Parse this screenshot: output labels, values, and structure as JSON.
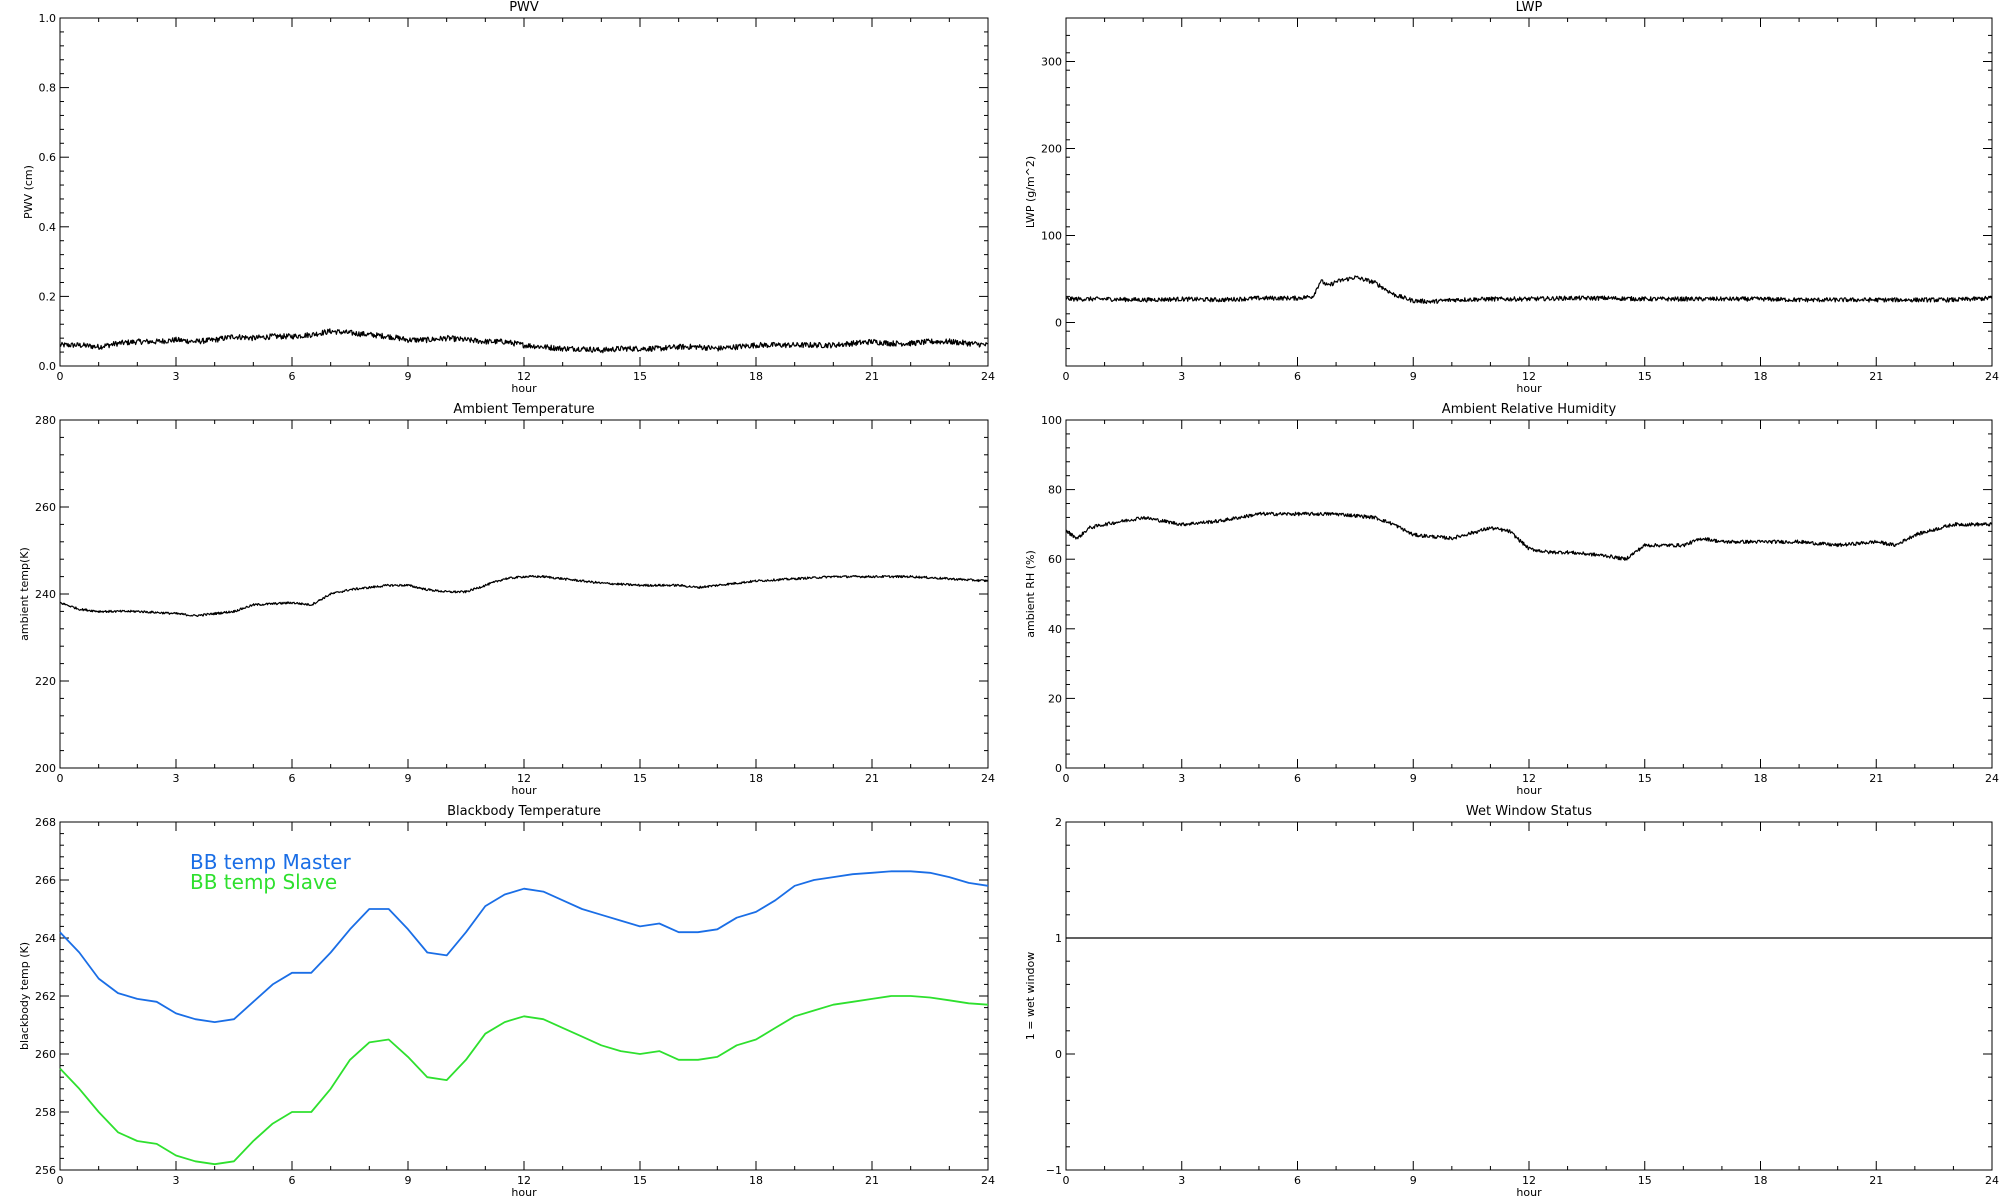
{
  "chart_data": [
    {
      "id": "pwv",
      "type": "line",
      "title": "PWV",
      "xlabel": "hour",
      "ylabel": "PWV (cm)",
      "xlim": [
        0,
        24
      ],
      "ylim": [
        0,
        1.0
      ],
      "xticks": [
        "0",
        "3",
        "6",
        "9",
        "12",
        "15",
        "18",
        "21",
        "24"
      ],
      "yticks": [
        "0.0",
        "0.2",
        "0.4",
        "0.6",
        "0.8",
        "1.0"
      ],
      "ytick_values": [
        0,
        0.2,
        0.4,
        0.6,
        0.8,
        1.0
      ],
      "grid": false,
      "series": [
        {
          "color": "#000000",
          "noise": 0.008,
          "x": [
            0,
            0.5,
            1,
            1.5,
            2,
            2.5,
            3,
            3.5,
            4,
            4.5,
            5,
            5.5,
            6,
            6.5,
            7,
            7.5,
            8,
            8.5,
            9,
            9.5,
            10,
            10.5,
            11,
            11.5,
            12,
            12.5,
            13,
            13.5,
            14,
            14.5,
            15,
            15.5,
            16,
            16.5,
            17,
            17.5,
            18,
            18.5,
            19,
            19.5,
            20,
            20.5,
            21,
            21.5,
            22,
            22.5,
            23,
            23.5,
            24
          ],
          "values": [
            0.06,
            0.06,
            0.055,
            0.065,
            0.07,
            0.07,
            0.075,
            0.07,
            0.075,
            0.085,
            0.08,
            0.085,
            0.085,
            0.09,
            0.1,
            0.095,
            0.09,
            0.085,
            0.075,
            0.075,
            0.08,
            0.075,
            0.07,
            0.07,
            0.06,
            0.055,
            0.05,
            0.05,
            0.045,
            0.05,
            0.05,
            0.05,
            0.055,
            0.055,
            0.05,
            0.055,
            0.06,
            0.06,
            0.06,
            0.06,
            0.06,
            0.065,
            0.07,
            0.065,
            0.065,
            0.07,
            0.07,
            0.065,
            0.06
          ]
        }
      ]
    },
    {
      "id": "lwp",
      "type": "line",
      "title": "LWP",
      "xlabel": "hour",
      "ylabel": "LWP (g/m^2)",
      "xlim": [
        0,
        24
      ],
      "ylim": [
        -50,
        350
      ],
      "xticks": [
        "0",
        "3",
        "6",
        "9",
        "12",
        "15",
        "18",
        "21",
        "24"
      ],
      "yticks": [
        "0",
        "100",
        "200",
        "300"
      ],
      "ytick_values": [
        0,
        100,
        200,
        300
      ],
      "grid": false,
      "series": [
        {
          "color": "#000000",
          "noise": 2.5,
          "x": [
            0,
            1,
            2,
            3,
            4,
            5,
            6,
            6.4,
            6.6,
            6.8,
            7,
            7.5,
            8,
            8.5,
            9,
            9.5,
            10,
            11,
            12,
            13,
            14,
            15,
            16,
            17,
            18,
            19,
            20,
            21,
            22,
            23,
            24
          ],
          "values": [
            27,
            27,
            26,
            27,
            26,
            28,
            28,
            30,
            48,
            42,
            47,
            52,
            46,
            32,
            25,
            24,
            26,
            27,
            27,
            28,
            28,
            27,
            27,
            27,
            27,
            26,
            26,
            26,
            26,
            26,
            28
          ]
        }
      ]
    },
    {
      "id": "ambient-temp",
      "type": "line",
      "title": "Ambient Temperature",
      "xlabel": "hour",
      "ylabel": "ambient temp(K)",
      "xlim": [
        0,
        24
      ],
      "ylim": [
        200,
        280
      ],
      "xticks": [
        "0",
        "3",
        "6",
        "9",
        "12",
        "15",
        "18",
        "21",
        "24"
      ],
      "yticks": [
        "200",
        "220",
        "240",
        "260",
        "280"
      ],
      "ytick_values": [
        200,
        220,
        240,
        260,
        280
      ],
      "grid": false,
      "series": [
        {
          "color": "#000000",
          "noise": 0.25,
          "x": [
            0,
            0.5,
            1,
            2,
            3,
            3.5,
            4,
            4.5,
            5,
            6,
            6.5,
            7,
            7.5,
            8,
            8.5,
            9,
            9.5,
            10,
            10.5,
            11,
            11.5,
            12,
            12.5,
            13,
            14,
            15,
            16,
            16.5,
            17,
            18,
            19,
            20,
            21,
            22,
            23,
            24
          ],
          "values": [
            238,
            236.5,
            236,
            236,
            235.5,
            235,
            235.5,
            236,
            237.5,
            238,
            237.5,
            240,
            241,
            241.5,
            242,
            242,
            241,
            240.5,
            240.5,
            242,
            243.5,
            244,
            244,
            243.5,
            242.5,
            242,
            242,
            241.5,
            242,
            243,
            243.5,
            244,
            244,
            244,
            243.5,
            243
          ]
        }
      ]
    },
    {
      "id": "ambient-rh",
      "type": "line",
      "title": "Ambient Relative Humidity",
      "xlabel": "hour",
      "ylabel": "ambient RH (%)",
      "xlim": [
        0,
        24
      ],
      "ylim": [
        0,
        100
      ],
      "xticks": [
        "0",
        "3",
        "6",
        "9",
        "12",
        "15",
        "18",
        "21",
        "24"
      ],
      "yticks": [
        "0",
        "20",
        "40",
        "60",
        "80",
        "100"
      ],
      "ytick_values": [
        0,
        20,
        40,
        60,
        80,
        100
      ],
      "grid": false,
      "series": [
        {
          "color": "#000000",
          "noise": 0.5,
          "x": [
            0,
            0.3,
            0.6,
            1,
            1.5,
            2,
            2.5,
            3,
            4,
            5,
            6,
            7,
            8,
            8.5,
            9,
            10,
            11,
            11.5,
            12,
            12.5,
            13,
            14,
            14.5,
            15,
            16,
            16.5,
            17,
            18,
            19,
            20,
            21,
            21.5,
            22,
            23,
            24
          ],
          "values": [
            68,
            66,
            69,
            70,
            71,
            72,
            71,
            70,
            71,
            73,
            73,
            73,
            72,
            70,
            67,
            66,
            69,
            68,
            63,
            62,
            62,
            61,
            60,
            64,
            64,
            66,
            65,
            65,
            65,
            64,
            65,
            64,
            67,
            70,
            70
          ]
        }
      ]
    },
    {
      "id": "blackbody-temp",
      "type": "line",
      "title": "Blackbody Temperature",
      "xlabel": "hour",
      "ylabel": "blackbody temp (K)",
      "xlim": [
        0,
        24
      ],
      "ylim": [
        256,
        268
      ],
      "xticks": [
        "0",
        "3",
        "6",
        "9",
        "12",
        "15",
        "18",
        "21",
        "24"
      ],
      "yticks": [
        "256",
        "258",
        "260",
        "262",
        "264",
        "266",
        "268"
      ],
      "ytick_values": [
        256,
        258,
        260,
        262,
        264,
        266,
        268
      ],
      "grid": false,
      "legend": "top-left",
      "series": [
        {
          "name": "BB temp Master",
          "color": "#1a6ee6",
          "noise": 0,
          "x": [
            0,
            0.5,
            1,
            1.5,
            2,
            2.5,
            3,
            3.5,
            4,
            4.5,
            5,
            5.5,
            6,
            6.5,
            7,
            7.5,
            8,
            8.5,
            9,
            9.5,
            10,
            10.5,
            11,
            11.5,
            12,
            12.5,
            13,
            13.5,
            14,
            14.5,
            15,
            15.5,
            16,
            16.5,
            17,
            17.5,
            18,
            18.5,
            19,
            19.5,
            20,
            20.5,
            21,
            21.5,
            22,
            22.5,
            23,
            23.5,
            24
          ],
          "values": [
            264.2,
            263.5,
            262.6,
            262.1,
            261.9,
            261.8,
            261.4,
            261.2,
            261.1,
            261.2,
            261.8,
            262.4,
            262.8,
            262.8,
            263.5,
            264.3,
            265.0,
            265.0,
            264.3,
            263.5,
            263.4,
            264.2,
            265.1,
            265.5,
            265.7,
            265.6,
            265.3,
            265.0,
            264.8,
            264.6,
            264.4,
            264.5,
            264.2,
            264.2,
            264.3,
            264.7,
            264.9,
            265.3,
            265.8,
            266.0,
            266.1,
            266.2,
            266.25,
            266.3,
            266.3,
            266.25,
            266.1,
            265.9,
            265.8
          ]
        },
        {
          "name": "BB temp Slave",
          "color": "#2ee02e",
          "noise": 0,
          "x": [
            0,
            0.5,
            1,
            1.5,
            2,
            2.5,
            3,
            3.5,
            4,
            4.5,
            5,
            5.5,
            6,
            6.5,
            7,
            7.5,
            8,
            8.5,
            9,
            9.5,
            10,
            10.5,
            11,
            11.5,
            12,
            12.5,
            13,
            13.5,
            14,
            14.5,
            15,
            15.5,
            16,
            16.5,
            17,
            17.5,
            18,
            18.5,
            19,
            19.5,
            20,
            20.5,
            21,
            21.5,
            22,
            22.5,
            23,
            23.5,
            24
          ],
          "values": [
            259.5,
            258.8,
            258.0,
            257.3,
            257.0,
            256.9,
            256.5,
            256.3,
            256.2,
            256.3,
            257.0,
            257.6,
            258.0,
            258.0,
            258.8,
            259.8,
            260.4,
            260.5,
            259.9,
            259.2,
            259.1,
            259.8,
            260.7,
            261.1,
            261.3,
            261.2,
            260.9,
            260.6,
            260.3,
            260.1,
            260.0,
            260.1,
            259.8,
            259.8,
            259.9,
            260.3,
            260.5,
            260.9,
            261.3,
            261.5,
            261.7,
            261.8,
            261.9,
            262.0,
            262.0,
            261.95,
            261.85,
            261.75,
            261.7
          ]
        }
      ]
    },
    {
      "id": "wet-window",
      "type": "line",
      "title": "Wet Window Status",
      "xlabel": "hour",
      "ylabel": "1 = wet window",
      "xlim": [
        0,
        24
      ],
      "ylim": [
        -1,
        2
      ],
      "xticks": [
        "0",
        "3",
        "6",
        "9",
        "12",
        "15",
        "18",
        "21",
        "24"
      ],
      "yticks": [
        "−1",
        "0",
        "1",
        "2"
      ],
      "ytick_values": [
        -1,
        0,
        1,
        2
      ],
      "grid": false,
      "series": [
        {
          "color": "#000000",
          "noise": 0,
          "x": [
            0,
            24
          ],
          "values": [
            1,
            1
          ]
        }
      ]
    }
  ]
}
